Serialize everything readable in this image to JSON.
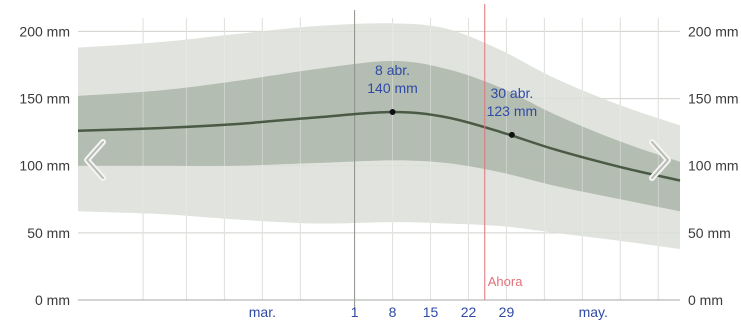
{
  "chart_data": {
    "type": "area",
    "title": "",
    "xlabel": "",
    "ylabel": "",
    "ylim": [
      0,
      210
    ],
    "y_ticks": [
      {
        "value": 0,
        "label": "0 mm"
      },
      {
        "value": 50,
        "label": "50 mm"
      },
      {
        "value": 100,
        "label": "100 mm"
      },
      {
        "value": 150,
        "label": "150 mm"
      },
      {
        "value": 200,
        "label": "200 mm"
      }
    ],
    "right_y_ticks": [
      {
        "value": 0,
        "label": "0 mm"
      },
      {
        "value": 50,
        "label": "50 mm"
      },
      {
        "value": 100,
        "label": "100 mm"
      },
      {
        "value": 150,
        "label": "150 mm"
      },
      {
        "value": 200,
        "label": "200 mm"
      }
    ],
    "x_range": [
      "02-10",
      "05-31"
    ],
    "x_ticks": [
      {
        "date": "03-15",
        "label": "mar."
      },
      {
        "date": "04-01",
        "label": "1"
      },
      {
        "date": "04-08",
        "label": "8"
      },
      {
        "date": "04-15",
        "label": "15"
      },
      {
        "date": "04-22",
        "label": "22"
      },
      {
        "date": "04-29",
        "label": "29"
      },
      {
        "date": "05-15",
        "label": "may."
      }
    ],
    "month_lines": [
      "04-01"
    ],
    "minor_lines": [
      "02-22",
      "03-01",
      "03-08",
      "03-15",
      "03-22",
      "04-08",
      "04-15",
      "04-22",
      "04-29",
      "05-06",
      "05-13",
      "05-20",
      "05-27"
    ],
    "series": [
      {
        "band": "outer",
        "color": "#dcdfd8",
        "x": [
          "02-10",
          "02-25",
          "03-10",
          "03-25",
          "04-08",
          "04-18",
          "04-28",
          "05-08",
          "05-20",
          "05-31"
        ],
        "upper": [
          188,
          192,
          198,
          204,
          206,
          202,
          186,
          165,
          145,
          130
        ],
        "lower": [
          66,
          64,
          60,
          57,
          58,
          57,
          55,
          50,
          44,
          38
        ]
      },
      {
        "band": "inner",
        "color": "#a9b3a6",
        "x": [
          "02-10",
          "02-25",
          "03-10",
          "03-25",
          "04-08",
          "04-18",
          "04-28",
          "05-08",
          "05-20",
          "05-31"
        ],
        "upper": [
          152,
          156,
          163,
          172,
          178,
          172,
          158,
          138,
          118,
          103
        ],
        "lower": [
          100,
          100,
          100,
          102,
          104,
          102,
          95,
          85,
          75,
          66
        ]
      },
      {
        "band": "median",
        "color": "#4a5a45",
        "x": [
          "02-10",
          "02-25",
          "03-10",
          "03-25",
          "04-08",
          "04-18",
          "04-28",
          "05-08",
          "05-20",
          "05-31"
        ],
        "values": [
          126,
          128,
          131,
          136,
          140,
          136,
          125,
          112,
          99,
          89
        ]
      }
    ],
    "points": [
      {
        "x": "04-08",
        "y": 140,
        "label_date": "8 abr.",
        "label_value": "140 mm"
      },
      {
        "x": "04-30",
        "y": 123,
        "label_date": "30 abr.",
        "label_value": "123 mm"
      }
    ],
    "now_marker": {
      "x": "04-25",
      "label": "Ahora",
      "color": "#e0727b"
    },
    "nav": {
      "prev": "chevron-left",
      "next": "chevron-right"
    },
    "colors": {
      "grid": "#cfd3cc",
      "month_line": "#8c9189",
      "axis": "#a6aaa3",
      "median": "#4a5a45"
    }
  }
}
